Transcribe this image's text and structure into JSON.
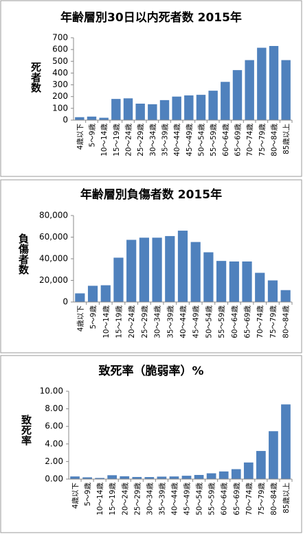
{
  "chart_data": [
    {
      "type": "bar",
      "title": "年齢層別30日以内死者数 2015年",
      "y_label": "死者数",
      "color": "#4f81bd",
      "categories": [
        "4歳以下",
        "5～9歳",
        "10～14歳",
        "15～19歳",
        "20～24歳",
        "25～29歳",
        "30～34歳",
        "35～39歳",
        "40～44歳",
        "45～49歳",
        "50～54歳",
        "55～59歳",
        "60～64歳",
        "65～69歳",
        "70～74歳",
        "75～79歳",
        "80～84歳",
        "85歳以上"
      ],
      "values": [
        25,
        30,
        20,
        180,
        185,
        140,
        135,
        170,
        200,
        210,
        215,
        250,
        325,
        425,
        510,
        615,
        630,
        510
      ],
      "ylim": [
        0,
        700
      ],
      "yticks": [
        0,
        100,
        200,
        300,
        400,
        500,
        600,
        700
      ]
    },
    {
      "type": "bar",
      "title": "年齢層別負傷者数 2015年",
      "y_label": "負傷者数",
      "color": "#4f81bd",
      "categories": [
        "4歳以下",
        "5～9歳",
        "10～14歳",
        "15～19歳",
        "20～24歳",
        "25～29歳",
        "30～34歳",
        "35～39歳",
        "40～44歳",
        "45～49歳",
        "50～54歳",
        "55～59歳",
        "60～64歳",
        "65～69歳",
        "70～74歳",
        "75～79歳",
        "80～84歳"
      ],
      "values": [
        8000,
        15000,
        15500,
        41000,
        57500,
        59500,
        59500,
        61000,
        66000,
        55500,
        46000,
        38000,
        37500,
        37500,
        27000,
        20000,
        11000
      ],
      "ylim": [
        0,
        80000
      ],
      "yticks": [
        0,
        {
          "value": 20000,
          "label": "20,000"
        },
        {
          "value": 40000,
          "label": "40,000"
        },
        {
          "value": 60000,
          "label": "60,000"
        },
        {
          "value": 80000,
          "label": "80,000"
        }
      ]
    },
    {
      "type": "bar",
      "title": "致死率（脆弱率）%",
      "y_label": "致死率",
      "color": "#4f81bd",
      "categories": [
        "4歳以下",
        "5～9歳",
        "10～14歳",
        "15～19歳",
        "20～24歳",
        "25～29歳",
        "30～34歳",
        "35～39歳",
        "40～44歳",
        "45～49歳",
        "50～54歳",
        "55～59歳",
        "60～64歳",
        "65～69歳",
        "70～74歳",
        "75～79歳",
        "80～84歳",
        "85歳以上"
      ],
      "values": [
        0.3,
        0.2,
        0.13,
        0.44,
        0.32,
        0.24,
        0.23,
        0.28,
        0.3,
        0.38,
        0.47,
        0.66,
        0.87,
        1.13,
        1.89,
        3.2,
        5.45,
        8.5
      ],
      "ylim": [
        0,
        10
      ],
      "yticks": [
        {
          "value": 0,
          "label": "0.00"
        },
        {
          "value": 2,
          "label": "2.00"
        },
        {
          "value": 4,
          "label": "4.00"
        },
        {
          "value": 6,
          "label": "6.00"
        },
        {
          "value": 8,
          "label": "8.00"
        },
        {
          "value": 10,
          "label": "10.00"
        }
      ]
    }
  ]
}
